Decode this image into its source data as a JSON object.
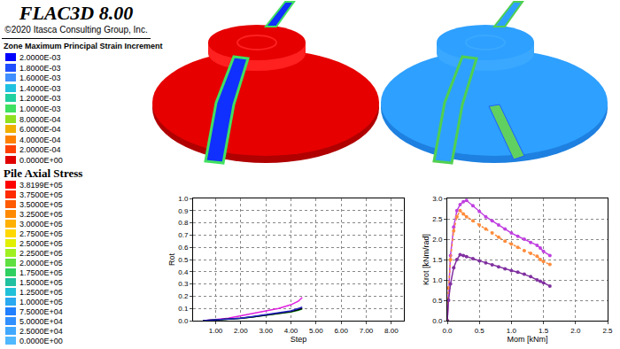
{
  "header": {
    "title": "FLAC3D 8.00",
    "copyright": "©2020 Itasca Consulting Group, Inc."
  },
  "legends": [
    {
      "title": "Zone Maximum Principal Strain Increment",
      "entries": [
        {
          "label": "2.0000E-03",
          "color": "#0000ff"
        },
        {
          "label": "1.8000E-03",
          "color": "#1f4fff"
        },
        {
          "label": "1.6000E-03",
          "color": "#3f8fff"
        },
        {
          "label": "1.4000E-03",
          "color": "#20c0e0"
        },
        {
          "label": "1.2000E-03",
          "color": "#20d0a0"
        },
        {
          "label": "1.0000E-03",
          "color": "#40e060"
        },
        {
          "label": "8.0000E-04",
          "color": "#90e020"
        },
        {
          "label": "6.0000E-04",
          "color": "#f0b000"
        },
        {
          "label": "4.0000E-04",
          "color": "#ff8000"
        },
        {
          "label": "2.0000E-04",
          "color": "#ff4000"
        },
        {
          "label": "0.0000E+00",
          "color": "#e00000"
        }
      ]
    },
    {
      "title": "Pile Axial Stress",
      "entries": [
        {
          "label": "3.8199E+05",
          "color": "#ff0000"
        },
        {
          "label": "3.7500E+05",
          "color": "#ff2a00"
        },
        {
          "label": "3.5000E+05",
          "color": "#ff5a00"
        },
        {
          "label": "3.2500E+05",
          "color": "#ff8a00"
        },
        {
          "label": "3.0000E+05",
          "color": "#ffb000"
        },
        {
          "label": "2.7500E+05",
          "color": "#ffd800"
        },
        {
          "label": "2.5000E+05",
          "color": "#e0f000"
        },
        {
          "label": "2.2500E+05",
          "color": "#a0f020"
        },
        {
          "label": "2.0000E+05",
          "color": "#60e040"
        },
        {
          "label": "1.7500E+05",
          "color": "#30d060"
        },
        {
          "label": "1.5000E+05",
          "color": "#20c0a0"
        },
        {
          "label": "1.2500E+05",
          "color": "#20c0d8"
        },
        {
          "label": "1.0000E+05",
          "color": "#2aa8f0"
        },
        {
          "label": "7.5000E+04",
          "color": "#2080ff"
        },
        {
          "label": "5.0000E+04",
          "color": "#3090ff"
        },
        {
          "label": "2.5000E+04",
          "color": "#40a8ff"
        },
        {
          "label": "0.0000E+00",
          "color": "#50b8ff"
        }
      ]
    }
  ],
  "chart_data": [
    {
      "type": "line",
      "x_label": "Step",
      "y_label": "Rot",
      "xlim": [
        0.1,
        8.5
      ],
      "xticks": [
        {
          "value": 1,
          "label": "1.00"
        },
        {
          "value": 2,
          "label": "2.00"
        },
        {
          "value": 3,
          "label": "3.00"
        },
        {
          "value": 4,
          "label": "4.00"
        },
        {
          "value": 5,
          "label": "5.00"
        },
        {
          "value": 6,
          "label": "6.00"
        },
        {
          "value": 7,
          "label": "7.00"
        },
        {
          "value": 8,
          "label": "8.00"
        }
      ],
      "ylim": [
        0,
        1
      ],
      "yticks": [
        {
          "value": 0,
          "label": "0.0"
        },
        0.1,
        0.2,
        0.3,
        0.4,
        0.5,
        0.6,
        0.7,
        0.8,
        0.9,
        {
          "value": 1,
          "label": "1.0"
        }
      ],
      "grid": true,
      "x": [
        0.5,
        1,
        1.5,
        2,
        2.5,
        3,
        3.5,
        4,
        4.3,
        4.45
      ],
      "series": [
        {
          "color": "#e020e0",
          "values": [
            0,
            0.01,
            0.02,
            0.04,
            0.06,
            0.08,
            0.1,
            0.13,
            0.16,
            0.19
          ]
        },
        {
          "color": "#20a020",
          "values": [
            0,
            0.005,
            0.01,
            0.018,
            0.03,
            0.042,
            0.055,
            0.07,
            0.085,
            0.095
          ]
        },
        {
          "color": "#000000",
          "values": [
            0,
            0.005,
            0.01,
            0.02,
            0.03,
            0.045,
            0.06,
            0.075,
            0.09,
            0.1
          ]
        },
        {
          "color": "#2020c0",
          "values": [
            0,
            0.005,
            0.01,
            0.02,
            0.035,
            0.05,
            0.065,
            0.08,
            0.1,
            0.11
          ]
        }
      ]
    },
    {
      "type": "line",
      "x_label": "Mom [kNm]",
      "y_label": "Krot [kNm/rad]",
      "xlim": [
        0,
        2.5
      ],
      "xticks": [
        {
          "value": 0,
          "label": "0.0"
        },
        0.5,
        {
          "value": 1,
          "label": "1.0"
        },
        1.5,
        {
          "value": 2,
          "label": "2.0"
        },
        2.5
      ],
      "ylim": [
        0,
        3
      ],
      "yticks": [
        {
          "value": 0,
          "label": "0.0"
        },
        0.5,
        {
          "value": 1,
          "label": "1.0"
        },
        1.5,
        {
          "value": 2,
          "label": "2.0"
        },
        2.5,
        {
          "value": 3,
          "label": "3.0"
        }
      ],
      "grid": true,
      "x": [
        0,
        0.02,
        0.05,
        0.1,
        0.15,
        0.2,
        0.25,
        0.3,
        0.4,
        0.5,
        0.6,
        0.7,
        0.8,
        0.9,
        1.0,
        1.1,
        1.2,
        1.3,
        1.4,
        1.45,
        1.5,
        1.6
      ],
      "series": [
        {
          "color": "#c040e0",
          "marker": "circle",
          "line_style": "solid",
          "values": [
            0,
            0.8,
            1.6,
            2.3,
            2.7,
            2.85,
            2.92,
            2.95,
            2.82,
            2.68,
            2.55,
            2.45,
            2.35,
            2.25,
            2.15,
            2.07,
            2.0,
            1.92,
            1.85,
            1.78,
            1.7,
            1.6
          ]
        },
        {
          "color": "#ff8c3c",
          "marker": "circle",
          "line_style": "dot",
          "values": [
            0,
            0.8,
            1.5,
            2.2,
            2.55,
            2.7,
            2.62,
            2.55,
            2.45,
            2.35,
            2.25,
            2.15,
            2.05,
            1.95,
            1.88,
            1.8,
            1.72,
            1.65,
            1.58,
            1.5,
            1.45,
            1.38
          ]
        },
        {
          "color": "#8030a0",
          "marker": "circle",
          "line_style": "solid",
          "values": [
            0,
            0.5,
            0.9,
            1.3,
            1.5,
            1.62,
            1.6,
            1.57,
            1.52,
            1.47,
            1.42,
            1.37,
            1.32,
            1.27,
            1.23,
            1.19,
            1.14,
            1.08,
            1.0,
            0.97,
            0.93,
            0.85
          ]
        }
      ]
    }
  ]
}
